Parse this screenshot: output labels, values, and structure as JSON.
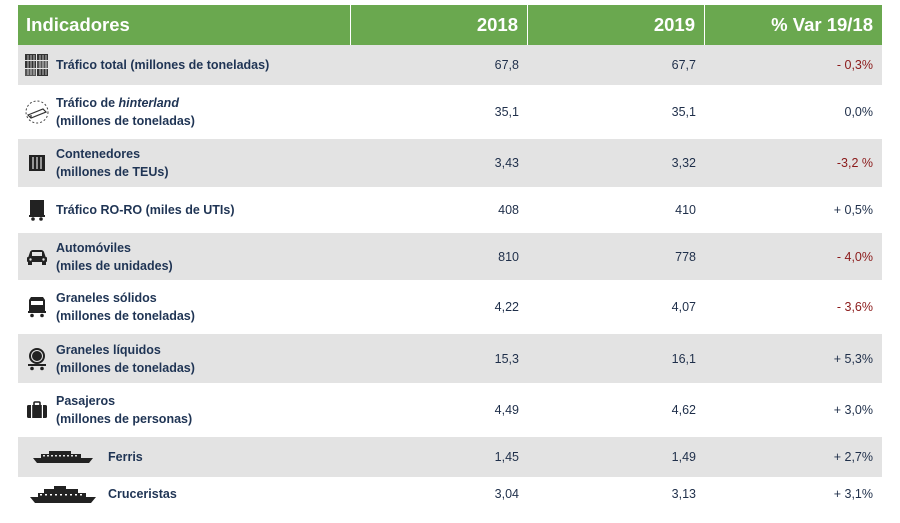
{
  "header": {
    "indicadores": "Indicadores",
    "y2018": "2018",
    "y2019": "2019",
    "var": "% Var 19/18"
  },
  "rows": [
    {
      "icon": "containers-stack-icon",
      "line1": "Tráfico total (millones de toneladas)",
      "v2018": "67,8",
      "v2019": "67,7",
      "var": "- 0,3%"
    },
    {
      "icon": "hinterland-truck-icon",
      "line1_pre": "Tráfico de ",
      "line1_it": "hinterland",
      "line2": "(millones de toneladas)",
      "v2018": "35,1",
      "v2019": "35,1",
      "var": "0,0%"
    },
    {
      "icon": "container-icon",
      "line1": "Contenedores",
      "line2": "(millones de TEUs)",
      "v2018": "3,43",
      "v2019": "3,32",
      "var": "-3,2 %"
    },
    {
      "icon": "roro-truck-icon",
      "line1": "Tráfico RO-RO (miles de UTIs)",
      "v2018": "408",
      "v2019": "410",
      "var": "+ 0,5%"
    },
    {
      "icon": "car-icon",
      "line1": "Automóviles",
      "line2": "(miles de unidades)",
      "v2018": "810",
      "v2019": "778",
      "var": "- 4,0%"
    },
    {
      "icon": "bulk-wagon-icon",
      "line1": "Graneles sólidos",
      "line2": "(millones de toneladas)",
      "v2018": "4,22",
      "v2019": "4,07",
      "var": "- 3,6%"
    },
    {
      "icon": "tank-wagon-icon",
      "line1": "Graneles líquidos",
      "line2": "(millones de toneladas)",
      "v2018": "15,3",
      "v2019": "16,1",
      "var": "+ 5,3%"
    },
    {
      "icon": "suitcase-icon",
      "line1": "Pasajeros",
      "line2": "(millones de personas)",
      "v2018": "4,49",
      "v2019": "4,62",
      "var": "+ 3,0%"
    },
    {
      "icon": "ferry-icon",
      "line1": "Ferris",
      "v2018": "1,45",
      "v2019": "1,49",
      "var": "+ 2,7%"
    },
    {
      "icon": "cruise-ship-icon",
      "line1": "Cruceristas",
      "v2018": "3,04",
      "v2019": "3,13",
      "var": "+ 3,1%"
    }
  ]
}
